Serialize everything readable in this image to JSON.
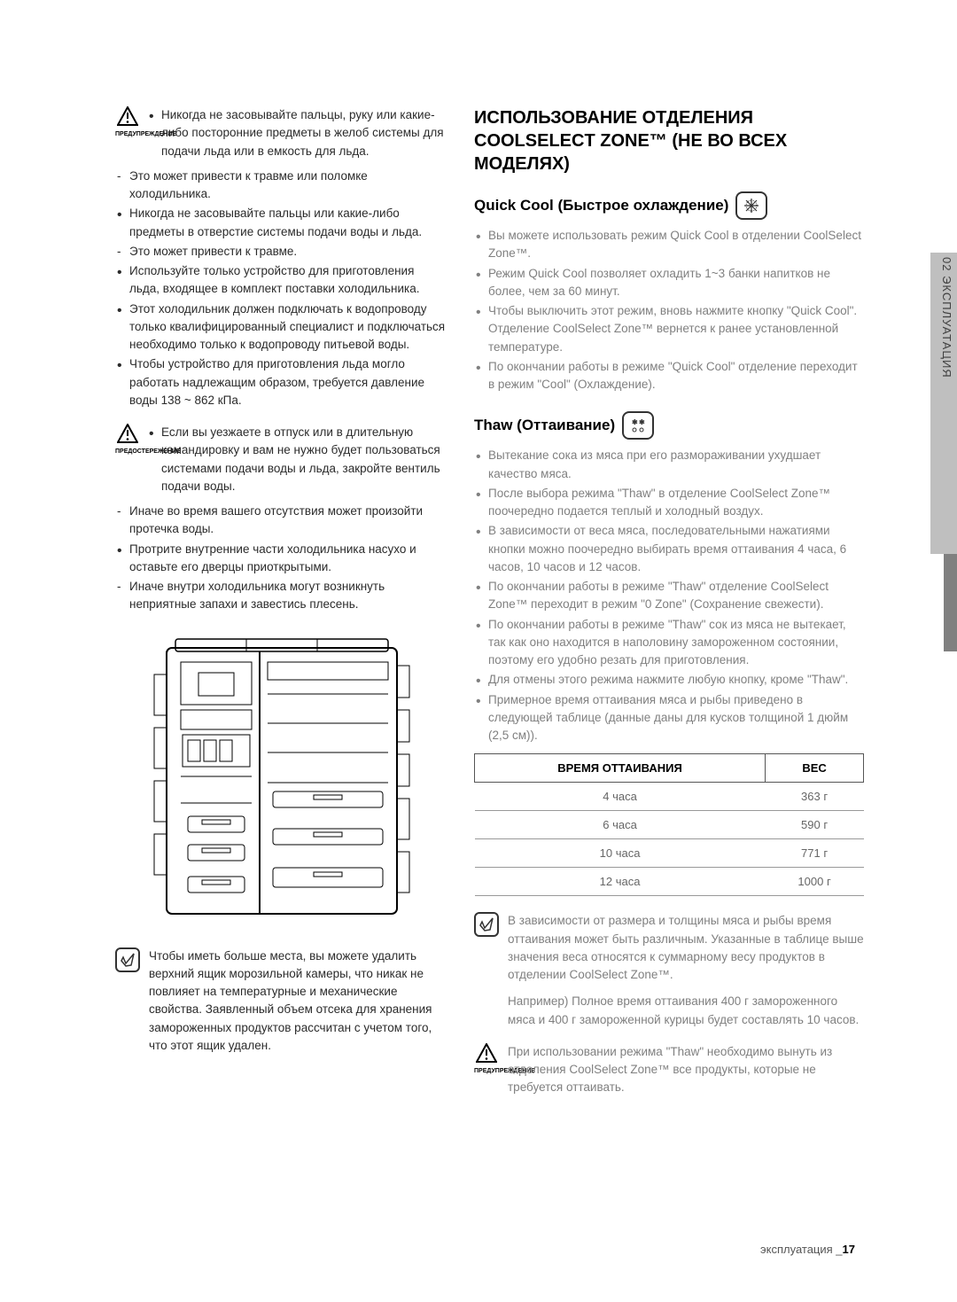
{
  "left": {
    "warn1_label": "ПРЕДУПРЕЖДЕНИЕ",
    "warn1_bullets": [
      {
        "cls": "dot",
        "txt": "Никогда не засовывайте пальцы, руку или какие-либо посторонние предметы в желоб системы для подачи льда или в емкость для льда."
      }
    ],
    "main_bullets": [
      {
        "cls": "dash",
        "txt": "Это может привести к травме или поломке холодильника."
      },
      {
        "cls": "dot",
        "txt": "Никогда не засовывайте пальцы или какие-либо предметы в отверстие системы подачи воды и льда."
      },
      {
        "cls": "dash",
        "txt": "Это может привести к травме."
      },
      {
        "cls": "dot",
        "txt": "Используйте только устройство для приготовления льда, входящее в комплект поставки холодильника."
      },
      {
        "cls": "dot",
        "txt": "Этот холодильник должен подключать к водопроводу только квалифицированный специалист и подключаться необходимо только к водопроводу питьевой воды."
      },
      {
        "cls": "dot",
        "txt": "Чтобы устройство для приготовления льда могло работать надлежащим образом, требуется давление воды 138 ~ 862 кПа."
      }
    ],
    "warn2_label": "ПРЕДОСТЕРЕЖЕНИЕ",
    "warn2_bullets": [
      {
        "cls": "dot",
        "txt": "Если вы уезжаете в отпуск или в длительную командировку и вам не нужно будет пользоваться системами подачи воды и льда, закройте вентиль подачи воды."
      }
    ],
    "main_bullets2": [
      {
        "cls": "dash",
        "txt": "Иначе во время вашего отсутствия может произойти протечка воды."
      },
      {
        "cls": "dot",
        "txt": "Протрите внутренние части холодильника насухо и оставьте его дверцы приоткрытыми."
      },
      {
        "cls": "dash",
        "txt": "Иначе внутри холодильника могут возникнуть неприятные запахи и завестись плесень."
      }
    ],
    "note_text": "Чтобы иметь больше места, вы можете удалить верхний ящик морозильной камеры, что никак не повлияет на температурные и механические свойства. Заявленный объем отсека для хранения замороженных продуктов рассчитан с учетом того,  что этот ящик удален."
  },
  "right": {
    "section_title": "ИСПОЛЬЗОВАНИЕ ОТДЕЛЕНИЯ COOLSELECT ZONE™ (НЕ ВО ВСЕХ МОДЕЛЯХ)",
    "quickcool_heading": "Quick Cool (Быстрое охлаждение)",
    "quickcool_bullets": [
      {
        "cls": "dot",
        "txt": "Вы можете использовать режим Quick Cool в отделении CoolSelect Zone™."
      },
      {
        "cls": "dot",
        "txt": "Режим Quick Cool позволяет охладить 1~3 банки напитков не более, чем за 60 минут."
      },
      {
        "cls": "dot",
        "txt": "Чтобы выключить этот режим, вновь нажмите кнопку \"Quick Cool\". Отделение CoolSelect Zone™ вернется к ранее установленной температуре."
      },
      {
        "cls": "dot",
        "txt": "По окончании работы в режиме \"Quick Cool\" отделение переходит в режим \"Cool\" (Охлаждение)."
      }
    ],
    "thaw_heading": "Thaw (Оттаивание)",
    "thaw_bullets": [
      {
        "cls": "dot",
        "txt": "Вытекание сока из мяса при его размораживании ухудшает качество мяса."
      },
      {
        "cls": "dot",
        "txt": "После выбора режима \"Thaw\" в отделение CoolSelect Zone™ поочередно подается теплый и холодный воздух."
      },
      {
        "cls": "dot",
        "txt": "В зависимости от веса мяса, последовательными нажатиями кнопки можно поочередно выбирать время оттаивания 4 часа, 6 часов, 10 часов и 12 часов."
      },
      {
        "cls": "dot",
        "txt": "По окончании работы в режиме \"Thaw\" отделение CoolSelect Zone™ переходит в режим \"0 Zone\" (Сохранение свежести)."
      },
      {
        "cls": "dot",
        "txt": "По окончании работы в режиме \"Thaw\" сок из мяса не вытекает, так как оно находится в наполовину замороженном состоянии, поэтому его удобно резать для приготовления."
      },
      {
        "cls": "dot",
        "txt": "Для отмены этого режима нажмите любую кнопку, кроме \"Thaw\"."
      },
      {
        "cls": "dot",
        "txt": "Примерное время оттаивания мяса и рыбы приведено в следующей таблице (данные даны для кусков толщиной 1 дюйм (2,5 см))."
      }
    ],
    "table": {
      "headers": [
        "ВРЕМЯ ОТТАИВАНИЯ",
        "ВЕС"
      ],
      "rows": [
        [
          "4 часа",
          "363 г"
        ],
        [
          "6 часа",
          "590 г"
        ],
        [
          "10 часа",
          "771 г"
        ],
        [
          "12 часа",
          "1000 г"
        ]
      ]
    },
    "note1_text": "В зависимости от размера и толщины мяса и рыбы время оттаивания может быть различным. Указанные в таблице выше значения веса относятся к суммарному весу продуктов в отделении CoolSelect Zone™.",
    "note1_example": "Например) Полное время оттаивания 400 г замороженного мяса и 400 г замороженной курицы будет составлять 10 часов.",
    "warn3_label": "ПРЕДУПРЕЖДЕНИЕ",
    "warn3_text": "При использовании режима \"Thaw\" необходимо вынуть из отделения CoolSelect Zone™ все продукты, которые не требуется оттаивать."
  },
  "side_tab": "02  ЭКСПЛУАТАЦИЯ",
  "footer_text": "эксплуатация _",
  "footer_page": "17"
}
